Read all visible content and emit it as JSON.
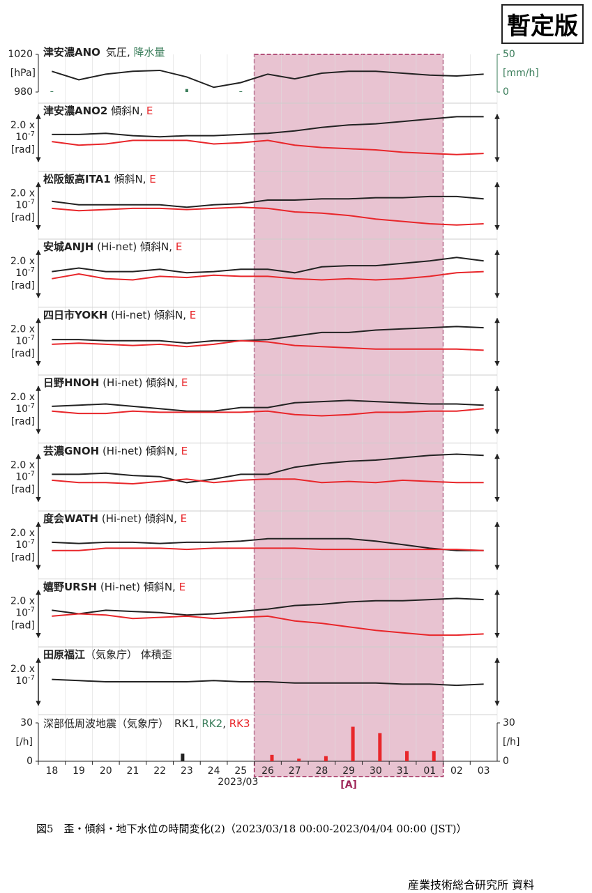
{
  "stamp": "暫定版",
  "x_axis": {
    "categories": [
      "18",
      "19",
      "20",
      "21",
      "22",
      "23",
      "24",
      "25",
      "26",
      "27",
      "28",
      "29",
      "30",
      "31",
      "01",
      "02",
      "03"
    ],
    "label": "2023/03"
  },
  "highlight": {
    "label": "[A]",
    "first": "26",
    "last": "01"
  },
  "caption": "図5　歪・傾斜・地下水位の時間変化(2)（2023/03/18 00:00-2023/04/04 00:00 (JST)）",
  "footer": "産業技術総合研究所 資料",
  "chart_data": [
    {
      "type": "combo",
      "station": "津安濃ANO",
      "title": "",
      "ylim": [
        980,
        1020
      ],
      "yticks": [
        980,
        1020
      ],
      "ylabel": "[hPa]",
      "y2lim": [
        0,
        50
      ],
      "y2ticks": [
        0,
        50
      ],
      "y2label": "[mm/h]",
      "series": [
        {
          "name": "気圧",
          "color": "#222222",
          "values": [
            1002,
            993,
            999,
            1002,
            1003,
            996,
            985,
            990,
            999,
            994,
            1000,
            1002,
            1002,
            1000,
            998,
            997,
            999
          ]
        },
        {
          "name": "降水量",
          "color": "#3a7d5a",
          "axis": "y2",
          "values": [
            1,
            0,
            0,
            0,
            0,
            4,
            0,
            1,
            0,
            0,
            0,
            0,
            0,
            0,
            0,
            0,
            0
          ]
        }
      ]
    },
    {
      "type": "line",
      "station": "津安濃ANO2",
      "title": " 傾斜",
      "scale": 2.0,
      "scale_label": "2.0 x",
      "scale_base": "10",
      "scale_exp": "-7",
      "unit": "[rad]",
      "series": [
        {
          "name": "N",
          "color": "#222222",
          "values": [
            0.15,
            0.15,
            0.2,
            0.1,
            0.05,
            0.1,
            0.1,
            0.15,
            0.2,
            0.3,
            0.45,
            0.55,
            0.6,
            0.7,
            0.8,
            0.9,
            0.9
          ]
        },
        {
          "name": "E",
          "color": "#e8262a",
          "values": [
            -0.15,
            -0.3,
            -0.25,
            -0.1,
            -0.1,
            -0.1,
            -0.25,
            -0.2,
            -0.1,
            -0.3,
            -0.4,
            -0.45,
            -0.5,
            -0.6,
            -0.65,
            -0.7,
            -0.65
          ]
        }
      ]
    },
    {
      "type": "line",
      "station": "松阪飯高ITA1",
      "title": " 傾斜",
      "scale": 2.0,
      "scale_label": "2.0 x",
      "scale_base": "10",
      "scale_exp": "-7",
      "unit": "[rad]",
      "series": [
        {
          "name": "N",
          "color": "#222222",
          "values": [
            0.2,
            0.05,
            0.05,
            0.05,
            0.05,
            -0.05,
            0.05,
            0.1,
            0.25,
            0.25,
            0.3,
            0.3,
            0.35,
            0.35,
            0.4,
            0.4,
            0.3
          ]
        },
        {
          "name": "E",
          "color": "#e8262a",
          "values": [
            -0.1,
            -0.2,
            -0.15,
            -0.1,
            -0.1,
            -0.15,
            -0.1,
            -0.05,
            -0.1,
            -0.25,
            -0.3,
            -0.4,
            -0.55,
            -0.65,
            -0.75,
            -0.8,
            -0.75
          ]
        }
      ]
    },
    {
      "type": "line",
      "station": "安城ANJH",
      "title": " (Hi-net) 傾斜",
      "scale": 2.0,
      "scale_label": "2.0 x",
      "scale_base": "10",
      "scale_exp": "-7",
      "unit": "[rad]",
      "series": [
        {
          "name": "N",
          "color": "#222222",
          "values": [
            0.1,
            0.25,
            0.1,
            0.1,
            0.2,
            0.05,
            0.1,
            0.2,
            0.2,
            0.05,
            0.3,
            0.35,
            0.35,
            0.45,
            0.55,
            0.7,
            0.55
          ]
        },
        {
          "name": "E",
          "color": "#e8262a",
          "values": [
            -0.2,
            0,
            -0.2,
            -0.25,
            -0.1,
            -0.15,
            -0.05,
            -0.1,
            -0.1,
            -0.2,
            -0.25,
            -0.2,
            -0.25,
            -0.2,
            -0.1,
            0.05,
            0.1
          ]
        }
      ]
    },
    {
      "type": "line",
      "station": "四日市YOKH",
      "title": " (Hi-net) 傾斜",
      "scale": 2.0,
      "scale_label": "2.0 x",
      "scale_base": "10",
      "scale_exp": "-7",
      "unit": "[rad]",
      "series": [
        {
          "name": "N",
          "color": "#222222",
          "values": [
            0.1,
            0.1,
            0.05,
            0.05,
            0.05,
            -0.05,
            0.05,
            0.05,
            0.1,
            0.25,
            0.4,
            0.4,
            0.5,
            0.55,
            0.6,
            0.65,
            0.6
          ]
        },
        {
          "name": "E",
          "color": "#e8262a",
          "values": [
            -0.1,
            -0.05,
            -0.1,
            -0.15,
            -0.1,
            -0.2,
            -0.1,
            0.05,
            0,
            -0.15,
            -0.2,
            -0.25,
            -0.3,
            -0.3,
            -0.3,
            -0.3,
            -0.35
          ]
        }
      ]
    },
    {
      "type": "line",
      "station": "日野HNOH",
      "title": " (Hi-net) 傾斜",
      "scale": 2.0,
      "scale_label": "2.0 x",
      "scale_base": "10",
      "scale_exp": "-7",
      "unit": "[rad]",
      "series": [
        {
          "name": "N",
          "color": "#222222",
          "values": [
            0.15,
            0.2,
            0.25,
            0.15,
            0.05,
            -0.05,
            -0.05,
            0.1,
            0.1,
            0.3,
            0.35,
            0.4,
            0.35,
            0.3,
            0.25,
            0.25,
            0.2
          ]
        },
        {
          "name": "E",
          "color": "#e8262a",
          "values": [
            -0.05,
            -0.15,
            -0.15,
            -0.05,
            -0.1,
            -0.1,
            -0.1,
            -0.1,
            -0.05,
            -0.2,
            -0.25,
            -0.2,
            -0.1,
            -0.1,
            -0.05,
            -0.05,
            0.05
          ]
        }
      ]
    },
    {
      "type": "line",
      "station": "芸濃GNOH",
      "title": " (Hi-net) 傾斜",
      "scale": 2.0,
      "scale_label": "2.0 x",
      "scale_base": "10",
      "scale_exp": "-7",
      "unit": "[rad]",
      "series": [
        {
          "name": "N",
          "color": "#222222",
          "values": [
            0.15,
            0.15,
            0.2,
            0.1,
            0.05,
            -0.2,
            -0.05,
            0.15,
            0.15,
            0.45,
            0.6,
            0.7,
            0.75,
            0.85,
            0.95,
            1.0,
            0.95
          ]
        },
        {
          "name": "E",
          "color": "#e8262a",
          "values": [
            -0.1,
            -0.2,
            -0.2,
            -0.25,
            -0.15,
            -0.05,
            -0.2,
            -0.1,
            -0.05,
            -0.05,
            -0.2,
            -0.15,
            -0.2,
            -0.1,
            -0.15,
            -0.2,
            -0.2
          ]
        }
      ]
    },
    {
      "type": "line",
      "station": "度会WATH",
      "title": " (Hi-net) 傾斜",
      "scale": 2.0,
      "scale_label": "2.0 x",
      "scale_base": "10",
      "scale_exp": "-7",
      "unit": "[rad]",
      "series": [
        {
          "name": "N",
          "color": "#222222",
          "values": [
            0.15,
            0.1,
            0.15,
            0.15,
            0.1,
            0.15,
            0.15,
            0.2,
            0.3,
            0.3,
            0.3,
            0.3,
            0.2,
            0.05,
            -0.1,
            -0.2,
            -0.2
          ]
        },
        {
          "name": "E",
          "color": "#e8262a",
          "values": [
            -0.2,
            -0.2,
            -0.1,
            -0.1,
            -0.1,
            -0.15,
            -0.1,
            -0.1,
            -0.1,
            -0.1,
            -0.15,
            -0.15,
            -0.15,
            -0.15,
            -0.15,
            -0.15,
            -0.2
          ]
        }
      ]
    },
    {
      "type": "line",
      "station": "嬉野URSH",
      "title": " (Hi-net) 傾斜",
      "scale": 2.0,
      "scale_label": "2.0 x",
      "scale_base": "10",
      "scale_exp": "-7",
      "unit": "[rad]",
      "series": [
        {
          "name": "N",
          "color": "#222222",
          "values": [
            0.15,
            0,
            0.15,
            0.1,
            0.05,
            -0.05,
            0,
            0.1,
            0.2,
            0.35,
            0.4,
            0.5,
            0.55,
            0.55,
            0.6,
            0.65,
            0.6
          ]
        },
        {
          "name": "E",
          "color": "#e8262a",
          "values": [
            -0.1,
            0,
            -0.05,
            -0.2,
            -0.15,
            -0.1,
            -0.2,
            -0.15,
            -0.1,
            -0.3,
            -0.4,
            -0.55,
            -0.7,
            -0.8,
            -0.9,
            -0.9,
            -0.85
          ]
        }
      ]
    },
    {
      "type": "line",
      "station": "田原福江",
      "title": "（気象庁） 体積歪",
      "scale": 2.0,
      "scale_label": "2.0 x",
      "scale_base": "10",
      "scale_exp": "-7",
      "series": [
        {
          "color": "#222222",
          "values": [
            0.1,
            0.05,
            0,
            0,
            0,
            0,
            0.05,
            0,
            0,
            -0.05,
            -0.05,
            -0.05,
            -0.05,
            -0.1,
            -0.1,
            -0.15,
            -0.1
          ]
        }
      ]
    },
    {
      "type": "bar",
      "station": "",
      "title": "深部低周波地震（気象庁）",
      "ylim": [
        0,
        30
      ],
      "yticks": [
        0,
        30
      ],
      "ylabel": "[/h]",
      "series": [
        {
          "name": "RK1",
          "color": "#222222",
          "values": [
            0,
            0,
            0,
            0,
            0,
            6,
            0,
            0,
            0,
            0,
            0,
            0,
            0,
            0,
            0,
            0,
            0
          ]
        },
        {
          "name": "RK2",
          "color": "#3a7d5a",
          "values": [
            0,
            0,
            0,
            0,
            0,
            0,
            0,
            0,
            0,
            0,
            0,
            0,
            0,
            0,
            0,
            0,
            0
          ]
        },
        {
          "name": "RK3",
          "color": "#e8262a",
          "values": [
            0,
            0,
            0,
            0,
            0,
            0,
            0,
            0,
            5,
            2,
            4,
            27,
            22,
            8,
            8,
            0,
            0
          ]
        }
      ]
    }
  ]
}
